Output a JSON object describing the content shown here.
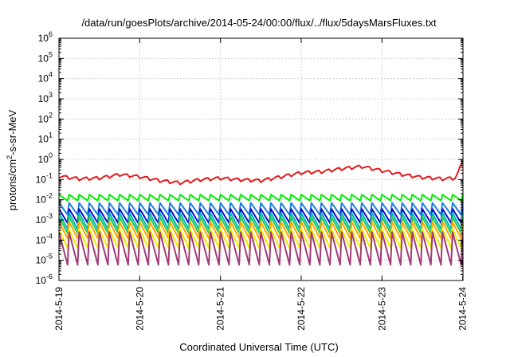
{
  "chart_data": {
    "type": "line",
    "title": "/data/run/goesPlots/archive/2014-05-24/00:00/flux/../flux/5daysMarsFluxes.txt",
    "xlabel": "Coordinated Universal Time (UTC)",
    "ylabel_parts": {
      "pre": "protons/cm",
      "sup": "2",
      "post": "-s-sr-MeV"
    },
    "x_axis": {
      "type": "date",
      "range": [
        "2014-05-19T00:00",
        "2014-05-24T00:05"
      ],
      "ticks": [
        "2014-5-19",
        "2014-5-20",
        "2014-5-21",
        "2014-5-22",
        "2014-5-23",
        "2014-5-24"
      ]
    },
    "y_axis": {
      "scale": "log",
      "range": [
        1e-06,
        1000000.0
      ],
      "tick_labels": [
        {
          "base": "10",
          "exp": "-6"
        },
        {
          "base": "10",
          "exp": "-5"
        },
        {
          "base": "10",
          "exp": "-4"
        },
        {
          "base": "10",
          "exp": "-3"
        },
        {
          "base": "10",
          "exp": "-2"
        },
        {
          "base": "10",
          "exp": "-1"
        },
        {
          "base": "10",
          "exp": "0"
        },
        {
          "base": "10",
          "exp": "1"
        },
        {
          "base": "10",
          "exp": "2"
        },
        {
          "base": "10",
          "exp": "3"
        },
        {
          "base": "10",
          "exp": "4"
        },
        {
          "base": "10",
          "exp": "5"
        },
        {
          "base": "10",
          "exp": "6"
        }
      ]
    },
    "grid": true,
    "legend": "none",
    "sawtooth_period_days": 0.125,
    "series": [
      {
        "color": "#e41a1c",
        "x": [
          "2014-05-19T00:00",
          "2014-05-19T06:00",
          "2014-05-19T12:00",
          "2014-05-19T18:00",
          "2014-05-20T00:00",
          "2014-05-20T06:00",
          "2014-05-20T12:00",
          "2014-05-20T18:00",
          "2014-05-21T00:00",
          "2014-05-21T06:00",
          "2014-05-21T12:00",
          "2014-05-21T18:00",
          "2014-05-22T00:00",
          "2014-05-22T06:00",
          "2014-05-22T12:00",
          "2014-05-22T18:00",
          "2014-05-23T00:00",
          "2014-05-23T06:00",
          "2014-05-23T12:00",
          "2014-05-23T18:00",
          "2014-05-23T22:00",
          "2014-05-24T00:00",
          "2014-05-24T00:05"
        ],
        "y": [
          0.15,
          0.11,
          0.12,
          0.18,
          0.14,
          0.09,
          0.07,
          0.1,
          0.12,
          0.1,
          0.09,
          0.14,
          0.22,
          0.25,
          0.35,
          0.45,
          0.28,
          0.18,
          0.13,
          0.11,
          0.12,
          0.85,
          0.7
        ]
      },
      {
        "color": "#00ee00",
        "base": 0.018,
        "min": 0.009,
        "x": [
          "2014-05-19T00:00",
          "2014-05-24T00:05"
        ]
      },
      {
        "color": "#1e7fe0",
        "base": 0.007,
        "min": 0.0018,
        "x": [
          "2014-05-19T00:00",
          "2014-05-24T00:05"
        ]
      },
      {
        "color": "#1010cc",
        "base": 0.0035,
        "min": 0.0007,
        "x": [
          "2014-05-19T00:00",
          "2014-05-24T00:05"
        ]
      },
      {
        "color": "#00bbbb",
        "base": 0.0022,
        "min": 0.00035,
        "x": [
          "2014-05-19T00:00",
          "2014-05-24T00:05"
        ]
      },
      {
        "color": "#22cc55",
        "base": 0.0014,
        "min": 0.00022,
        "x": [
          "2014-05-19T00:00",
          "2014-05-24T00:05"
        ]
      },
      {
        "color": "#ffa500",
        "base": 0.0008,
        "min": 0.00012,
        "x": [
          "2014-05-19T00:00",
          "2014-05-24T00:05"
        ]
      },
      {
        "color": "#f0f000",
        "base": 0.00035,
        "min": 4e-05,
        "x": [
          "2014-05-19T00:00",
          "2014-05-24T00:05"
        ]
      },
      {
        "color": "#a03c78",
        "base": 0.00025,
        "min": 6e-06,
        "x": [
          "2014-05-19T00:00",
          "2014-05-24T00:05"
        ]
      }
    ]
  }
}
